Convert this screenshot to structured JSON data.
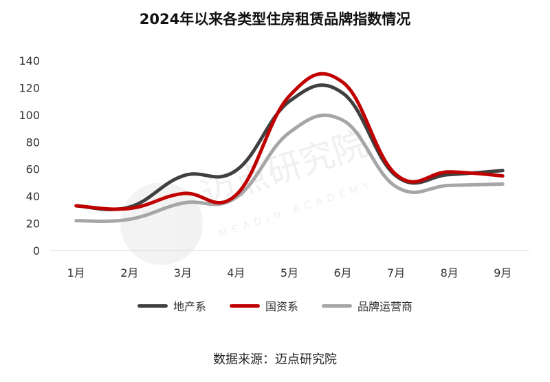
{
  "title": "2024年以来各类型住房租赁品牌指数情况",
  "source": "数据来源：迈点研究院",
  "watermark": {
    "cn": "迈点研究院",
    "en": "MEADIN ACADEMY"
  },
  "chart_data": {
    "type": "line",
    "title": "2024年以来各类型住房租赁品牌指数情况",
    "categories": [
      "1月",
      "2月",
      "3月",
      "4月",
      "5月",
      "6月",
      "7月",
      "8月",
      "9月"
    ],
    "ylim": [
      0,
      140
    ],
    "yticks": [
      0,
      20,
      40,
      60,
      80,
      100,
      120,
      140
    ],
    "grid": false,
    "legend_position": "bottom",
    "series": [
      {
        "name": "地产系",
        "color": "#404040",
        "values": [
          33,
          32,
          55,
          59,
          110,
          116,
          55,
          56,
          59
        ]
      },
      {
        "name": "国资系",
        "color": "#c00000",
        "values": [
          33,
          31,
          42,
          41,
          114,
          124,
          56,
          58,
          55
        ]
      },
      {
        "name": "品牌运营商",
        "color": "#a6a6a6",
        "values": [
          22,
          23,
          35,
          39,
          87,
          96,
          47,
          48,
          49
        ]
      }
    ]
  }
}
